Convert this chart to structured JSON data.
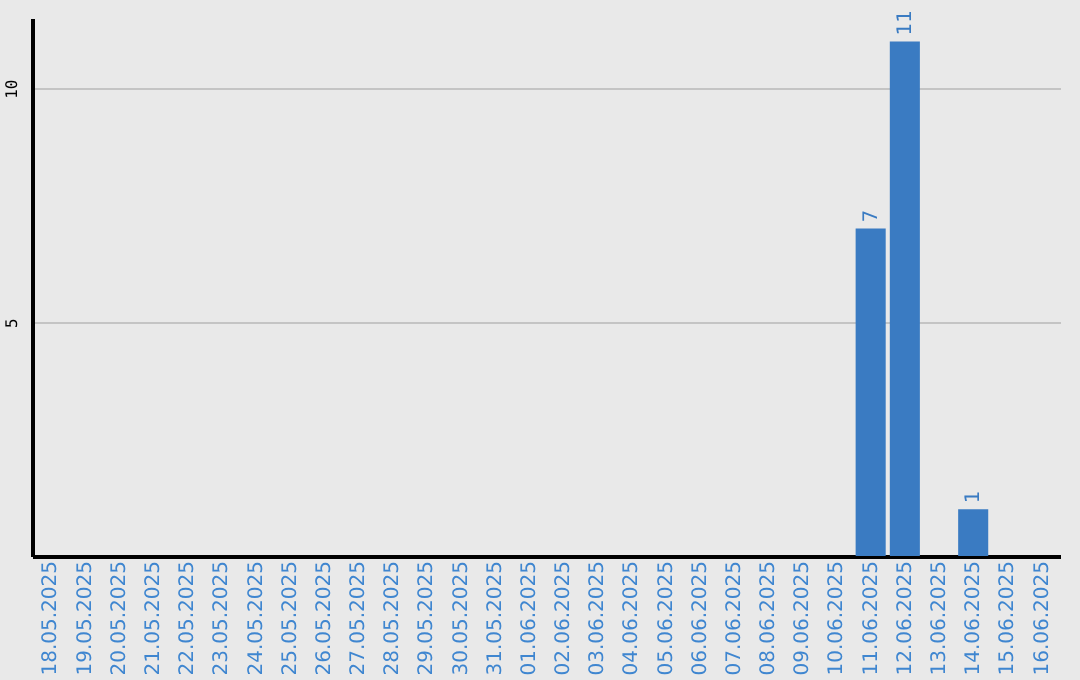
{
  "chart_data": {
    "type": "bar",
    "categories": [
      "18.05.2025",
      "19.05.2025",
      "20.05.2025",
      "21.05.2025",
      "22.05.2025",
      "23.05.2025",
      "24.05.2025",
      "25.05.2025",
      "26.05.2025",
      "27.05.2025",
      "28.05.2025",
      "29.05.2025",
      "30.05.2025",
      "31.05.2025",
      "01.06.2025",
      "02.06.2025",
      "03.06.2025",
      "04.06.2025",
      "05.06.2025",
      "06.06.2025",
      "07.06.2025",
      "08.06.2025",
      "09.06.2025",
      "10.06.2025",
      "11.06.2025",
      "12.06.2025",
      "13.06.2025",
      "14.06.2025",
      "15.06.2025",
      "16.06.2025"
    ],
    "values": [
      0,
      0,
      0,
      0,
      0,
      0,
      0,
      0,
      0,
      0,
      0,
      0,
      0,
      0,
      0,
      0,
      0,
      0,
      0,
      0,
      0,
      0,
      0,
      0,
      7,
      11,
      0,
      1,
      0,
      0
    ],
    "value_labels": [
      null,
      null,
      null,
      null,
      null,
      null,
      null,
      null,
      null,
      null,
      null,
      null,
      null,
      null,
      null,
      null,
      null,
      null,
      null,
      null,
      null,
      null,
      null,
      null,
      "7",
      "11",
      null,
      "1",
      null,
      null
    ],
    "color": "#3a7bc2",
    "ylim": [
      0,
      11.5
    ],
    "yticks": [
      5,
      10
    ],
    "grid": "y"
  }
}
